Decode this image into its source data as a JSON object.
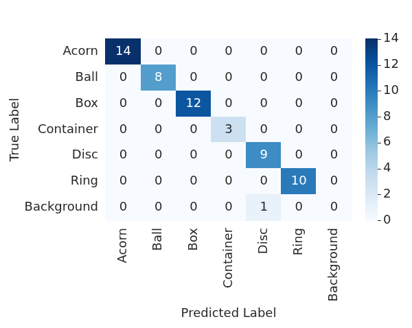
{
  "chart_data": {
    "type": "heatmap",
    "x_label": "Predicted Label",
    "y_label": "True Label",
    "x_categories": [
      "Acorn",
      "Ball",
      "Box",
      "Container",
      "Disc",
      "Ring",
      "Background"
    ],
    "y_categories": [
      "Acorn",
      "Ball",
      "Box",
      "Container",
      "Disc",
      "Ring",
      "Background"
    ],
    "cells": [
      [
        14,
        0,
        0,
        0,
        0,
        0,
        0
      ],
      [
        0,
        8,
        0,
        0,
        0,
        0,
        0
      ],
      [
        0,
        0,
        12,
        0,
        0,
        0,
        0
      ],
      [
        0,
        0,
        0,
        3,
        0,
        0,
        0
      ],
      [
        0,
        0,
        0,
        0,
        9,
        0,
        0
      ],
      [
        0,
        0,
        0,
        0,
        0,
        10,
        0
      ],
      [
        0,
        0,
        0,
        0,
        1,
        0,
        0
      ]
    ],
    "color": "Blues",
    "colorbar_range": [
      0,
      14
    ],
    "colorbar_ticks": [
      0,
      2,
      4,
      6,
      8,
      10,
      12,
      14
    ],
    "data_labels": true
  }
}
